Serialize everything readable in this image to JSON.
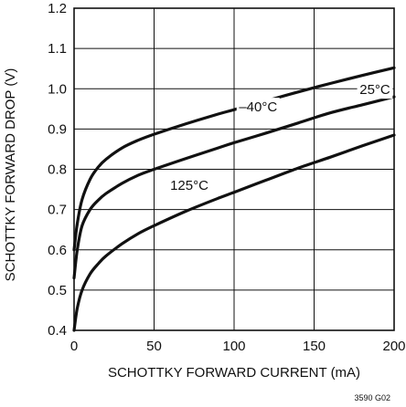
{
  "chart_data": {
    "type": "line",
    "xlabel": "SCHOTTKY FORWARD CURRENT (mA)",
    "ylabel": "SCHOTTKY FORWARD DROP (V)",
    "xlim": [
      0,
      200
    ],
    "ylim": [
      0.4,
      1.2
    ],
    "xticks": [
      "0",
      "50",
      "100",
      "150",
      "200"
    ],
    "yticks": [
      "0.4",
      "0.5",
      "0.6",
      "0.7",
      "0.8",
      "0.9",
      "1.0",
      "1.1",
      "1.2"
    ],
    "grid": true,
    "figure_code": "3590 G02",
    "series": [
      {
        "name": "–40°C",
        "x": [
          0,
          2,
          5,
          10,
          15,
          20,
          30,
          40,
          50,
          70,
          90,
          100,
          120,
          140,
          160,
          180,
          200
        ],
        "y": [
          0.6,
          0.665,
          0.725,
          0.775,
          0.805,
          0.825,
          0.853,
          0.872,
          0.887,
          0.913,
          0.937,
          0.948,
          0.97,
          0.992,
          1.013,
          1.033,
          1.052
        ]
      },
      {
        "name": "25°C",
        "x": [
          0,
          2,
          5,
          10,
          15,
          20,
          30,
          40,
          50,
          70,
          90,
          100,
          120,
          140,
          160,
          180,
          200
        ],
        "y": [
          0.53,
          0.6,
          0.66,
          0.7,
          0.723,
          0.74,
          0.765,
          0.785,
          0.8,
          0.827,
          0.853,
          0.866,
          0.89,
          0.915,
          0.94,
          0.96,
          0.98
        ]
      },
      {
        "name": "125°C",
        "x": [
          0,
          2,
          5,
          10,
          15,
          20,
          30,
          40,
          50,
          70,
          90,
          100,
          120,
          140,
          160,
          180,
          200
        ],
        "y": [
          0.4,
          0.455,
          0.5,
          0.54,
          0.565,
          0.585,
          0.615,
          0.64,
          0.66,
          0.696,
          0.728,
          0.743,
          0.773,
          0.803,
          0.83,
          0.858,
          0.885
        ]
      }
    ]
  }
}
